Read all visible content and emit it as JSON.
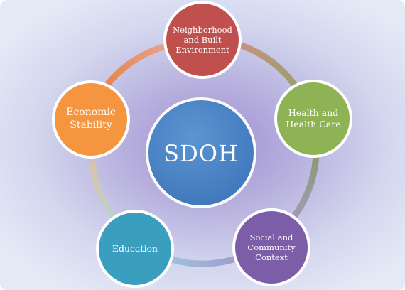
{
  "center": {
    "label": "SDOH",
    "color": "#4f86c8"
  },
  "nodes": [
    {
      "id": "neighborhood",
      "label": "Neighborhood\nand Built\nEnvironment",
      "color": "#c0504d"
    },
    {
      "id": "health-care",
      "label": "Health and\nHealth Care",
      "color": "#8db354"
    },
    {
      "id": "social-community",
      "label": "Social and\nCommunity\nContext",
      "color": "#7b5ea7"
    },
    {
      "id": "education",
      "label": "Education",
      "color": "#3a9fbf"
    },
    {
      "id": "economic-stability",
      "label": "Economic\nStability",
      "color": "#f59540"
    }
  ]
}
